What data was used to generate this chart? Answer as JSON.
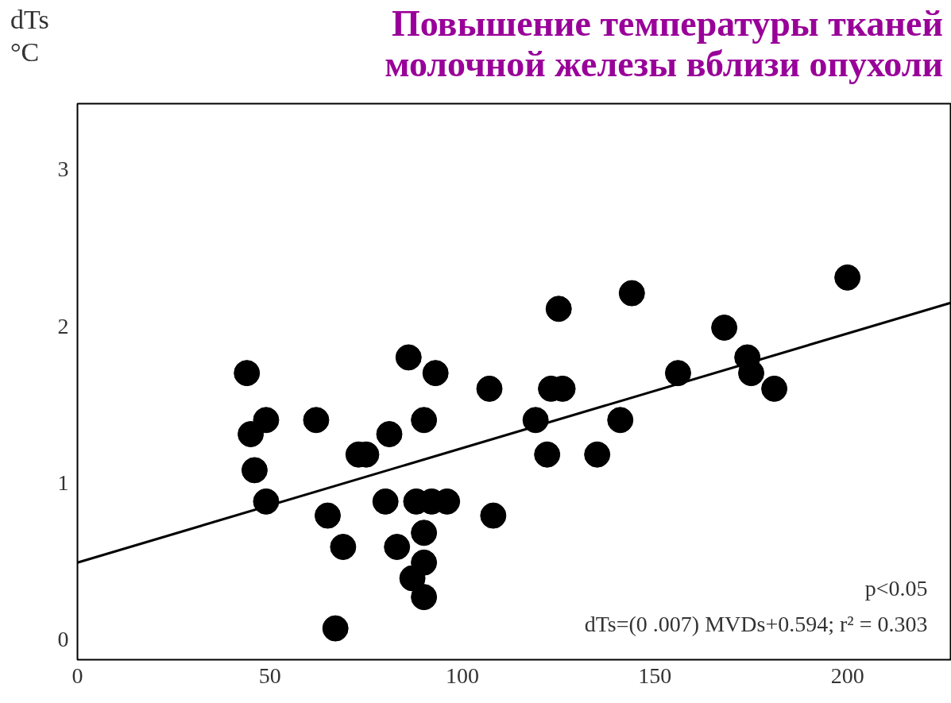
{
  "chart_data": {
    "type": "scatter",
    "title": "Повышение температуры тканей\nмолочной железы вблизи опухоли",
    "ylabel": "dTs\n°C",
    "xlim": [
      0,
      227
    ],
    "ylim": [
      -0.13,
      3.42
    ],
    "xticks": [
      0,
      50,
      100,
      150,
      200
    ],
    "yticks": [
      0,
      1,
      2,
      3
    ],
    "grid": false,
    "marker": "circle",
    "series": [
      {
        "color": "#000000",
        "x": [
          44,
          45,
          49,
          46,
          49,
          62,
          65,
          69,
          67,
          73,
          75,
          81,
          80,
          83,
          86,
          93,
          90,
          88,
          92,
          96,
          90,
          90,
          87,
          90,
          107,
          108,
          119,
          122,
          125,
          123,
          126,
          135,
          141,
          144,
          156,
          168,
          174,
          175,
          181,
          200
        ],
        "values": [
          1.7,
          1.31,
          1.4,
          1.08,
          0.88,
          1.4,
          0.79,
          0.59,
          0.07,
          1.18,
          1.18,
          1.31,
          0.88,
          0.59,
          1.8,
          1.7,
          1.4,
          0.88,
          0.88,
          0.88,
          0.68,
          0.49,
          0.39,
          0.27,
          1.6,
          0.79,
          1.4,
          1.18,
          2.11,
          1.6,
          1.6,
          1.18,
          1.4,
          2.21,
          1.7,
          1.99,
          1.8,
          1.7,
          1.6,
          2.31
        ]
      },
      {
        "type": "line",
        "color": "#000000",
        "line_style": "solid",
        "marker": "none",
        "x": [
          0,
          227
        ],
        "values": [
          0.49,
          2.15
        ]
      }
    ],
    "annotations": [
      "p<0.05",
      "dTs=(0 .007) MVDs+0.594; r² = 0.303"
    ]
  }
}
